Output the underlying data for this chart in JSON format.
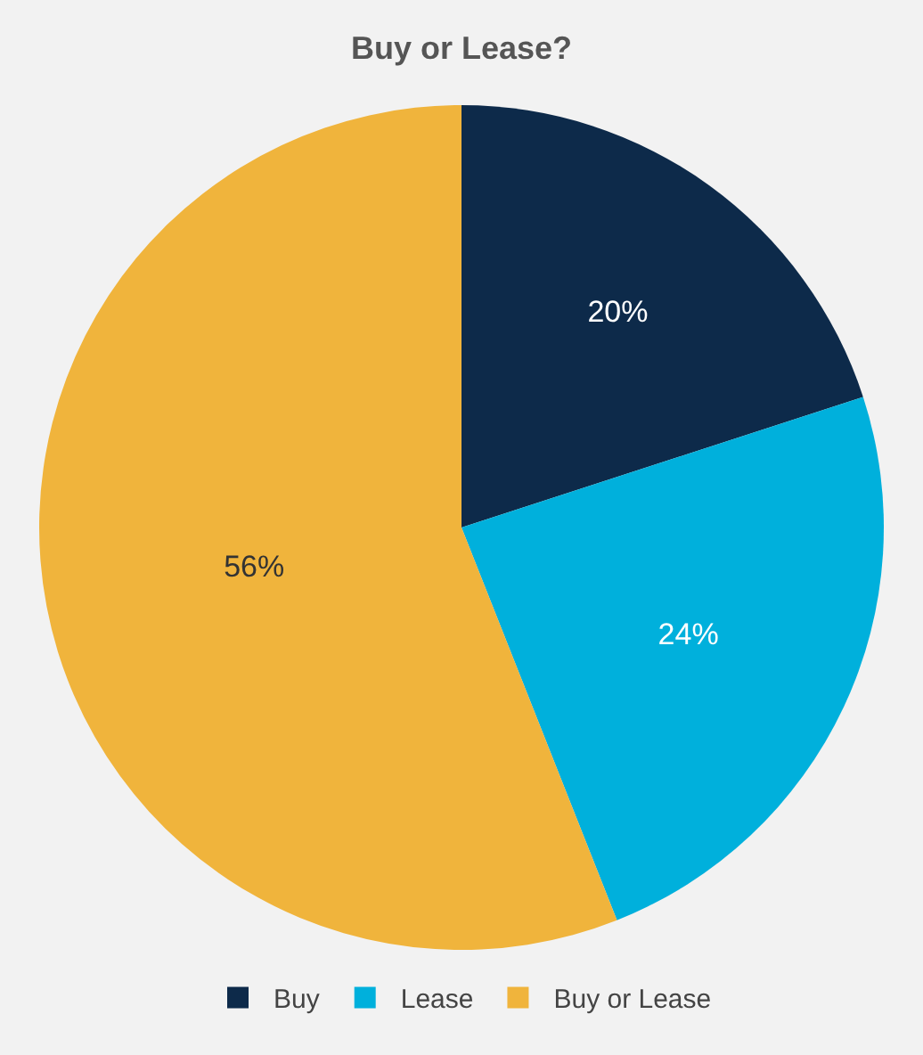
{
  "chart_data": {
    "type": "pie",
    "title": "Buy or Lease?",
    "categories": [
      "Buy",
      "Lease",
      "Buy or Lease"
    ],
    "values": [
      20,
      24,
      56
    ],
    "colors": [
      "#0d2a4a",
      "#00b0dc",
      "#f0b43c"
    ],
    "value_labels": [
      "20%",
      "24%",
      "56%"
    ],
    "legend": "bottom"
  }
}
